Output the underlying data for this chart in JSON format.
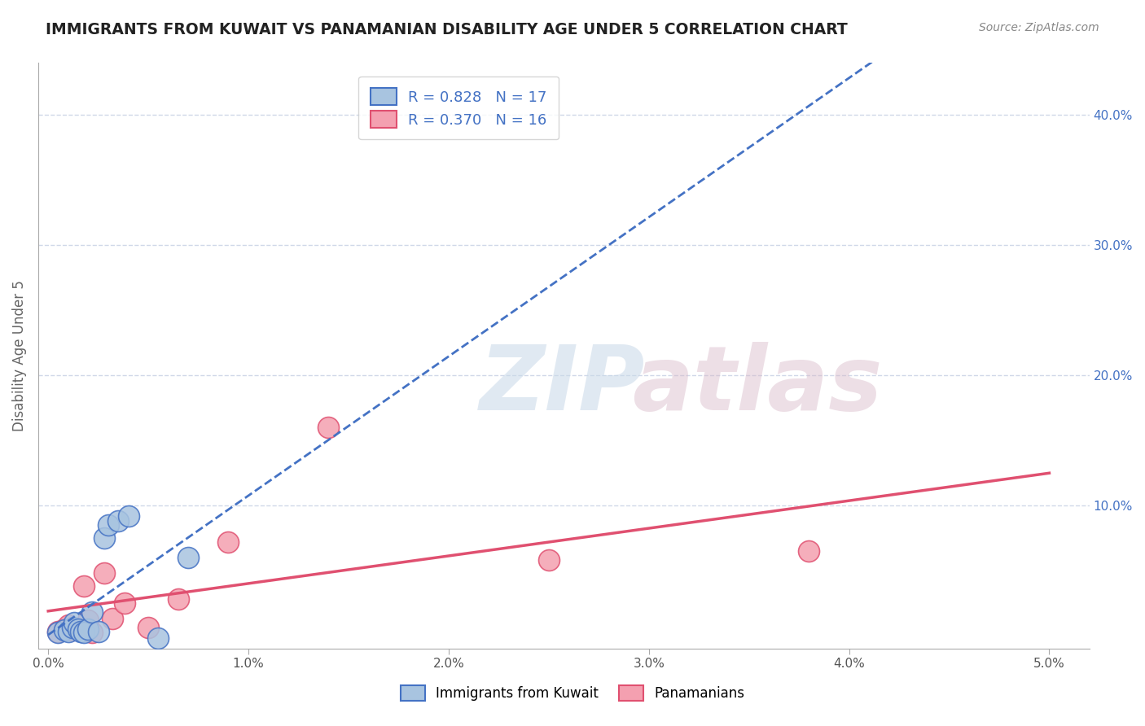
{
  "title": "IMMIGRANTS FROM KUWAIT VS PANAMANIAN DISABILITY AGE UNDER 5 CORRELATION CHART",
  "source": "Source: ZipAtlas.com",
  "ylabel": "Disability Age Under 5",
  "blue_R": 0.828,
  "blue_N": 17,
  "pink_R": 0.37,
  "pink_N": 16,
  "blue_pts_x": [
    0.05,
    0.08,
    0.1,
    0.12,
    0.13,
    0.15,
    0.16,
    0.18,
    0.2,
    0.22,
    0.25,
    0.28,
    0.3,
    0.35,
    0.4,
    0.55,
    0.7
  ],
  "blue_pts_y": [
    0.2,
    0.4,
    0.3,
    0.6,
    1.0,
    0.5,
    0.3,
    0.2,
    0.5,
    1.8,
    0.3,
    7.5,
    8.5,
    8.8,
    9.2,
    -0.2,
    6.0
  ],
  "pink_pts_x": [
    0.05,
    0.08,
    0.1,
    0.12,
    0.18,
    0.2,
    0.22,
    0.28,
    0.32,
    0.38,
    0.5,
    0.65,
    0.9,
    1.4,
    2.5,
    3.8
  ],
  "pink_pts_y": [
    0.3,
    0.5,
    0.8,
    0.4,
    3.8,
    1.2,
    0.2,
    4.8,
    1.3,
    2.5,
    0.6,
    2.8,
    7.2,
    16.0,
    5.8,
    6.5
  ],
  "blue_color": "#a8c4e0",
  "pink_color": "#f4a0b0",
  "blue_line_color": "#4472c4",
  "pink_line_color": "#e05070",
  "title_color": "#222222",
  "right_tick_color": "#4472c4",
  "background_color": "#ffffff",
  "grid_color": "#d0d8e8",
  "xtick_vals": [
    0.0,
    1.0,
    2.0,
    3.0,
    4.0,
    5.0
  ],
  "xtick_labels": [
    "0.0%",
    "1.0%",
    "2.0%",
    "3.0%",
    "4.0%",
    "5.0%"
  ],
  "ytick_vals": [
    10.0,
    20.0,
    30.0,
    40.0
  ],
  "ytick_labels": [
    "10.0%",
    "20.0%",
    "30.0%",
    "40.0%"
  ],
  "xlim": [
    -0.05,
    5.2
  ],
  "ylim": [
    -1.0,
    44.0
  ],
  "watermark_zip_color": "#c8d8e8",
  "watermark_atlas_color": "#d8b8c8",
  "legend_blue_label": "R = 0.828   N = 17",
  "legend_pink_label": "R = 0.370   N = 16",
  "bottom_legend_blue": "Immigrants from Kuwait",
  "bottom_legend_pink": "Panamanians"
}
